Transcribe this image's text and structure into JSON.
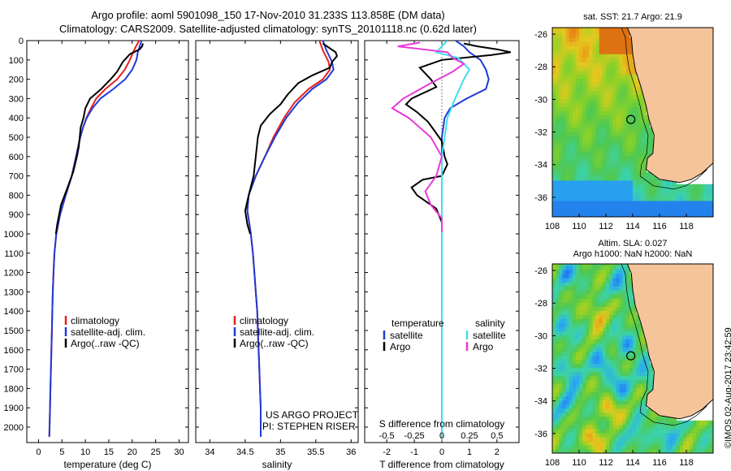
{
  "header": {
    "line1": "Argo profile: aoml 5901098_150 17-Nov-2010 31.233S 113.858E (DM data)",
    "line2": "Climatology: CARS2009. Satellite-adjusted climatology: synTS_20101118.nc (0.62d later)"
  },
  "colors": {
    "climatology": "#e8201c",
    "satellite": "#1f3bd6",
    "argo": "#000000",
    "sat_salinity": "#3ee0ee",
    "argo_salinity": "#e83ad8"
  },
  "depth_axis": {
    "ticks": [
      0,
      100,
      200,
      300,
      400,
      500,
      600,
      700,
      800,
      900,
      1000,
      1100,
      1200,
      1300,
      1400,
      1500,
      1600,
      1700,
      1800,
      1900,
      2000
    ],
    "range": [
      0,
      2080
    ]
  },
  "chart_data": [
    {
      "type": "line",
      "name": "temperature-profile",
      "xlabel": "temperature (deg C)",
      "xlim": [
        -2.5,
        32
      ],
      "xticks": [
        0,
        5,
        10,
        15,
        20,
        25,
        30
      ],
      "ylim": [
        0,
        2080
      ],
      "legend": [
        "climatology",
        "satellite-adj. clim.",
        "Argo(..raw -QC)"
      ],
      "series": [
        {
          "name": "climatology",
          "points": [
            [
              21.5,
              0
            ],
            [
              20.8,
              30
            ],
            [
              20.2,
              60
            ],
            [
              19.5,
              100
            ],
            [
              18.4,
              150
            ],
            [
              16.8,
              200
            ],
            [
              14.3,
              250
            ],
            [
              12.3,
              300
            ],
            [
              11.2,
              350
            ],
            [
              10.2,
              400
            ],
            [
              9.5,
              450
            ],
            [
              8.9,
              500
            ],
            [
              8.0,
              600
            ],
            [
              7.1,
              700
            ],
            [
              5.8,
              800
            ],
            [
              4.6,
              900
            ],
            [
              3.8,
              1000
            ],
            [
              3.4,
              1100
            ],
            [
              3.2,
              1200
            ],
            [
              3.05,
              1300
            ],
            [
              2.95,
              1400
            ],
            [
              2.85,
              1500
            ],
            [
              2.75,
              1600
            ],
            [
              2.65,
              1700
            ],
            [
              2.55,
              1800
            ],
            [
              2.45,
              1900
            ],
            [
              2.35,
              2000
            ],
            [
              2.3,
              2050
            ]
          ]
        },
        {
          "name": "satellite-adj. clim.",
          "points": [
            [
              22.0,
              0
            ],
            [
              21.6,
              30
            ],
            [
              21.2,
              60
            ],
            [
              20.9,
              100
            ],
            [
              20.0,
              150
            ],
            [
              18.5,
              200
            ],
            [
              16.0,
              250
            ],
            [
              13.2,
              300
            ],
            [
              11.5,
              350
            ],
            [
              10.3,
              400
            ],
            [
              9.5,
              450
            ],
            [
              8.9,
              500
            ],
            [
              8.0,
              600
            ],
            [
              7.1,
              700
            ],
            [
              5.8,
              800
            ],
            [
              4.6,
              900
            ],
            [
              3.8,
              1000
            ],
            [
              3.4,
              1100
            ],
            [
              3.2,
              1200
            ],
            [
              3.05,
              1300
            ],
            [
              2.95,
              1400
            ],
            [
              2.85,
              1500
            ],
            [
              2.75,
              1600
            ],
            [
              2.65,
              1700
            ],
            [
              2.55,
              1800
            ],
            [
              2.45,
              1900
            ],
            [
              2.35,
              2000
            ],
            [
              2.3,
              2050
            ]
          ]
        },
        {
          "name": "Argo(..raw -QC)",
          "points": [
            [
              22.3,
              15
            ],
            [
              22.1,
              30
            ],
            [
              21.6,
              45
            ],
            [
              19.5,
              70
            ],
            [
              18.0,
              110
            ],
            [
              16.8,
              160
            ],
            [
              15.4,
              200
            ],
            [
              13.4,
              250
            ],
            [
              11.0,
              300
            ],
            [
              10.0,
              350
            ],
            [
              9.6,
              400
            ],
            [
              9.0,
              450
            ],
            [
              8.6,
              550
            ],
            [
              8.2,
              600
            ],
            [
              7.4,
              680
            ],
            [
              6.2,
              760
            ],
            [
              4.8,
              850
            ],
            [
              4.0,
              950
            ],
            [
              3.7,
              1000
            ]
          ]
        }
      ]
    },
    {
      "type": "line",
      "name": "salinity-profile",
      "xlabel": "salinity",
      "xlim": [
        33.8,
        36.1
      ],
      "xticks": [
        34,
        34.5,
        35,
        35.5,
        36
      ],
      "ylim": [
        0,
        2080
      ],
      "legend": [
        "climatology",
        "satellite-adj. clim.",
        "Argo(..raw -QC)"
      ],
      "series": [
        {
          "name": "climatology",
          "points": [
            [
              35.55,
              0
            ],
            [
              35.6,
              50
            ],
            [
              35.68,
              110
            ],
            [
              35.7,
              150
            ],
            [
              35.6,
              200
            ],
            [
              35.4,
              250
            ],
            [
              35.2,
              320
            ],
            [
              35.05,
              400
            ],
            [
              34.9,
              500
            ],
            [
              34.78,
              600
            ],
            [
              34.65,
              700
            ],
            [
              34.55,
              800
            ],
            [
              34.53,
              880
            ],
            [
              34.56,
              950
            ],
            [
              34.58,
              1000
            ],
            [
              34.61,
              1100
            ],
            [
              34.63,
              1200
            ],
            [
              34.65,
              1300
            ],
            [
              34.67,
              1400
            ],
            [
              34.68,
              1500
            ],
            [
              34.69,
              1600
            ],
            [
              34.7,
              1700
            ],
            [
              34.71,
              1800
            ],
            [
              34.72,
              1900
            ],
            [
              34.72,
              2000
            ],
            [
              34.72,
              2050
            ]
          ]
        },
        {
          "name": "satellite-adj. clim.",
          "points": [
            [
              35.6,
              0
            ],
            [
              35.65,
              50
            ],
            [
              35.73,
              110
            ],
            [
              35.75,
              150
            ],
            [
              35.65,
              200
            ],
            [
              35.45,
              250
            ],
            [
              35.25,
              320
            ],
            [
              35.08,
              400
            ],
            [
              34.92,
              500
            ],
            [
              34.78,
              600
            ],
            [
              34.65,
              700
            ],
            [
              34.55,
              800
            ],
            [
              34.53,
              880
            ],
            [
              34.56,
              950
            ],
            [
              34.58,
              1000
            ],
            [
              34.61,
              1100
            ],
            [
              34.63,
              1200
            ],
            [
              34.65,
              1300
            ],
            [
              34.67,
              1400
            ],
            [
              34.68,
              1500
            ],
            [
              34.69,
              1600
            ],
            [
              34.7,
              1700
            ],
            [
              34.71,
              1800
            ],
            [
              34.72,
              1900
            ],
            [
              34.72,
              2000
            ],
            [
              34.72,
              2050
            ]
          ]
        },
        {
          "name": "Argo(..raw -QC)",
          "points": [
            [
              35.6,
              15
            ],
            [
              35.7,
              40
            ],
            [
              35.78,
              60
            ],
            [
              35.8,
              80
            ],
            [
              35.73,
              110
            ],
            [
              35.7,
              140
            ],
            [
              35.45,
              180
            ],
            [
              35.25,
              220
            ],
            [
              35.1,
              280
            ],
            [
              35.0,
              330
            ],
            [
              34.85,
              380
            ],
            [
              34.72,
              440
            ],
            [
              34.68,
              500
            ],
            [
              34.65,
              600
            ],
            [
              34.62,
              700
            ],
            [
              34.55,
              800
            ],
            [
              34.5,
              880
            ],
            [
              34.53,
              950
            ],
            [
              34.57,
              1000
            ]
          ]
        }
      ]
    },
    {
      "type": "line",
      "name": "difference-profile",
      "xlabel": "T difference from climatology",
      "xlabel_top": "S difference from climatology",
      "xlim": [
        -2.8,
        2.8
      ],
      "xticks": [
        -2,
        -1,
        0,
        1,
        2
      ],
      "top_ticks": [
        -0.5,
        -0.25,
        0,
        0.25,
        0.5
      ],
      "top_tick_labels": [
        "-0.5",
        "-0.25",
        "0",
        "0.25",
        "0.5"
      ],
      "ylim": [
        0,
        2080
      ],
      "legend_headers": [
        "temperature",
        "salinity"
      ],
      "legend": [
        "satellite",
        "Argo",
        "satellite",
        "Argo"
      ],
      "series": [
        {
          "name": "temperature satellite",
          "points": [
            [
              0.5,
              0
            ],
            [
              0.8,
              30
            ],
            [
              1.0,
              60
            ],
            [
              1.4,
              100
            ],
            [
              1.6,
              150
            ],
            [
              1.7,
              200
            ],
            [
              1.6,
              250
            ],
            [
              0.9,
              300
            ],
            [
              0.3,
              350
            ],
            [
              0.1,
              400
            ],
            [
              0.0,
              500
            ],
            [
              0.0,
              700
            ],
            [
              0.0,
              1000
            ],
            [
              0.0,
              2050
            ]
          ]
        },
        {
          "name": "temperature Argo",
          "points": [
            [
              0.8,
              15
            ],
            [
              1.3,
              30
            ],
            [
              2.0,
              45
            ],
            [
              2.5,
              60
            ],
            [
              1.8,
              75
            ],
            [
              0.0,
              100
            ],
            [
              -0.8,
              140
            ],
            [
              -0.4,
              200
            ],
            [
              -0.2,
              240
            ],
            [
              -1.1,
              300
            ],
            [
              -1.3,
              330
            ],
            [
              -0.9,
              370
            ],
            [
              -0.5,
              420
            ],
            [
              -0.3,
              460
            ],
            [
              0.0,
              520
            ],
            [
              0.1,
              600
            ],
            [
              0.2,
              640
            ],
            [
              0.0,
              700
            ],
            [
              -0.7,
              720
            ],
            [
              -1.1,
              760
            ],
            [
              -0.9,
              800
            ],
            [
              -0.2,
              870
            ],
            [
              0.0,
              940
            ],
            [
              0.0,
              990
            ]
          ]
        },
        {
          "name": "salinity satellite",
          "points": [
            [
              0.05,
              0
            ],
            [
              0.0,
              30
            ],
            [
              -0.05,
              60
            ],
            [
              0.15,
              90
            ],
            [
              0.25,
              150
            ],
            [
              0.2,
              200
            ],
            [
              0.12,
              300
            ],
            [
              0.05,
              400
            ],
            [
              0.0,
              600
            ],
            [
              0.0,
              1000
            ],
            [
              0.0,
              2050
            ]
          ]
        },
        {
          "name": "salinity Argo",
          "points": [
            [
              -0.2,
              10
            ],
            [
              -0.4,
              30
            ],
            [
              0.05,
              60
            ],
            [
              0.1,
              90
            ],
            [
              0.2,
              120
            ],
            [
              0.1,
              160
            ],
            [
              -0.1,
              220
            ],
            [
              -0.35,
              300
            ],
            [
              -0.45,
              350
            ],
            [
              -0.3,
              400
            ],
            [
              -0.1,
              500
            ],
            [
              0.0,
              600
            ],
            [
              -0.05,
              700
            ],
            [
              -0.15,
              780
            ],
            [
              -0.1,
              850
            ],
            [
              0.0,
              920
            ],
            [
              0.0,
              990
            ]
          ]
        }
      ]
    },
    {
      "type": "heatmap",
      "name": "sst-map",
      "title": "sat. SST: 21.7  Argo: 21.9",
      "xlim": [
        108,
        120
      ],
      "ylim": [
        -37.2,
        -25.6
      ],
      "xticks": [
        108,
        110,
        112,
        114,
        116,
        118
      ],
      "yticks": [
        -26,
        -28,
        -30,
        -32,
        -34,
        -36
      ],
      "argo_position": [
        113.858,
        -31.233
      ]
    },
    {
      "type": "heatmap",
      "name": "sla-map",
      "title": "Altim. SLA: 0.027",
      "subtitle": "Argo h1000: NaN  h2000: NaN",
      "xlim": [
        108,
        120
      ],
      "ylim": [
        -37.2,
        -25.6
      ],
      "xticks": [
        108,
        110,
        112,
        114,
        116,
        118
      ],
      "yticks": [
        -26,
        -28,
        -30,
        -32,
        -34,
        -36
      ],
      "argo_position": [
        113.858,
        -31.233
      ]
    }
  ],
  "footer": {
    "us_argo": "US ARGO PROJECT",
    "pi": "PI: STEPHEN RISER",
    "stamp": "©IMOS 02-Aug-2017 23:42:59"
  }
}
